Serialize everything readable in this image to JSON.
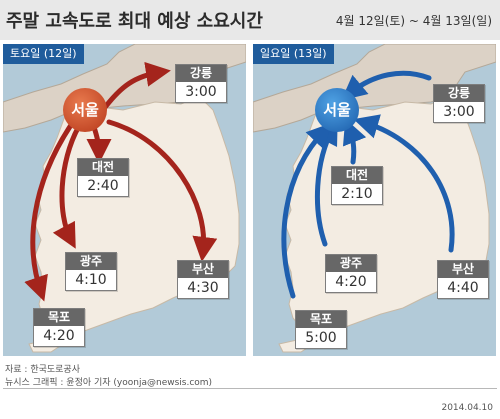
{
  "header": {
    "title": "주말 고속도로 최대 예상 소요시간",
    "dates": "4월 12일(토) ~ 4월 13일(일)"
  },
  "colors": {
    "saturday_arrow": "#a4241c",
    "sunday_arrow": "#1f5fae",
    "tag": "#1f5c9c",
    "map_bg": "#b2cad8"
  },
  "saturday": {
    "tag": "토요일 (12일)",
    "origin": "서울",
    "cities": [
      {
        "name": "강릉",
        "time": "3:00"
      },
      {
        "name": "대전",
        "time": "2:40"
      },
      {
        "name": "광주",
        "time": "4:10"
      },
      {
        "name": "부산",
        "time": "4:30"
      },
      {
        "name": "목포",
        "time": "4:20"
      }
    ]
  },
  "sunday": {
    "tag": "일요일 (13일)",
    "destination": "서울",
    "cities": [
      {
        "name": "강릉",
        "time": "3:00"
      },
      {
        "name": "대전",
        "time": "2:10"
      },
      {
        "name": "광주",
        "time": "4:20"
      },
      {
        "name": "부산",
        "time": "4:40"
      },
      {
        "name": "목포",
        "time": "5:00"
      }
    ]
  },
  "footer": {
    "source": "자료 : 한국도로공사",
    "credit": "뉴시스 그래픽 : 윤정아 기자 (yoonja@newsis.com)",
    "date": "2014.04.10"
  }
}
